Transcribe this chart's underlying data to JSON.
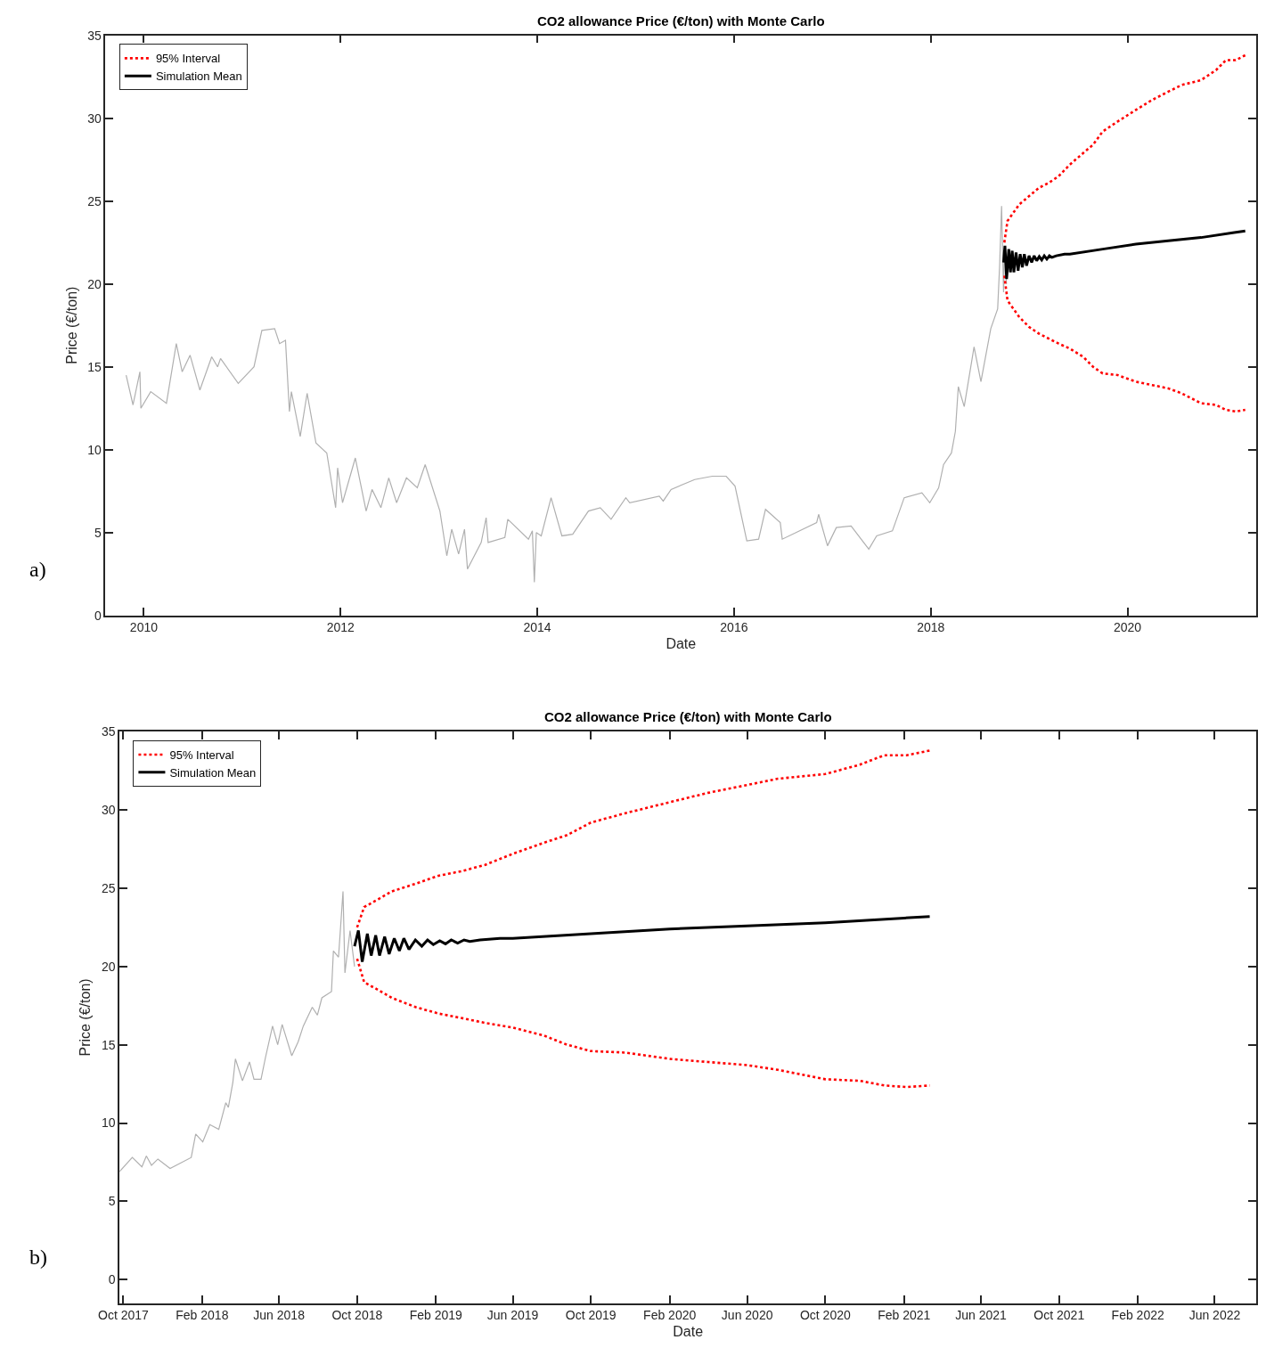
{
  "chart_data": [
    {
      "type": "line",
      "title": "CO2 allowance Price (€/ton) with Monte Carlo",
      "xlabel": "Date",
      "ylabel": "Price (€/ton)",
      "annotations": [
        "a)"
      ],
      "xlim": [
        2009.61,
        2021.31
      ],
      "xticks": [
        2010,
        2012,
        2014,
        2016,
        2018,
        2020
      ],
      "ylim": [
        0,
        35
      ],
      "yticks": [
        0,
        5,
        10,
        15,
        20,
        25,
        30,
        35
      ],
      "legend": "top left",
      "series": [
        {
          "color": "#b0b0b0",
          "line_style": "solid",
          "x": [
            2009.82,
            2009.89,
            2009.96,
            2009.97,
            2010.07,
            2010.23,
            2010.33,
            2010.39,
            2010.47,
            2010.57,
            2010.69,
            2010.75,
            2010.78,
            2010.96,
            2011.12,
            2011.2,
            2011.33,
            2011.38,
            2011.44,
            2011.48,
            2011.5,
            2011.59,
            2011.66,
            2011.75,
            2011.86,
            2011.95,
            2011.97,
            2012.02,
            2012.15,
            2012.26,
            2012.32,
            2012.41,
            2012.49,
            2012.57,
            2012.67,
            2012.78,
            2012.86,
            2013.01,
            2013.08,
            2013.13,
            2013.2,
            2013.26,
            2013.29,
            2013.43,
            2013.48,
            2013.5,
            2013.67,
            2013.7,
            2013.91,
            2013.95,
            2013.97,
            2013.99,
            2014.04,
            2014.14,
            2014.25,
            2014.36,
            2014.52,
            2014.64,
            2014.75,
            2014.9,
            2014.94,
            2015.24,
            2015.28,
            2015.36,
            2015.6,
            2015.78,
            2015.92,
            2016.01,
            2016.13,
            2016.25,
            2016.32,
            2016.47,
            2016.49,
            2016.84,
            2016.86,
            2016.95,
            2017.04,
            2017.19,
            2017.37,
            2017.45,
            2017.61,
            2017.73,
            2017.91,
            2017.99,
            2018.08,
            2018.13,
            2018.21,
            2018.25,
            2018.28,
            2018.34,
            2018.44,
            2018.51,
            2018.61,
            2018.68,
            2018.7,
            2018.72,
            2018.74,
            2018.75,
            2018.77
          ],
          "values": [
            14.5,
            12.7,
            14.7,
            12.5,
            13.5,
            12.8,
            16.4,
            14.7,
            15.7,
            13.6,
            15.6,
            15.0,
            15.5,
            14.0,
            15.0,
            17.2,
            17.3,
            16.4,
            16.6,
            12.3,
            13.5,
            10.8,
            13.4,
            10.4,
            9.8,
            6.5,
            8.9,
            6.8,
            9.5,
            6.3,
            7.6,
            6.5,
            8.3,
            6.8,
            8.3,
            7.7,
            9.1,
            6.3,
            3.6,
            5.2,
            3.7,
            5.2,
            2.8,
            4.4,
            5.9,
            4.4,
            4.7,
            5.8,
            4.6,
            5.1,
            2.0,
            5.0,
            4.8,
            7.1,
            4.8,
            4.9,
            6.3,
            6.5,
            5.8,
            7.1,
            6.8,
            7.2,
            6.9,
            7.6,
            8.2,
            8.4,
            8.4,
            7.8,
            4.5,
            4.6,
            6.4,
            5.6,
            4.6,
            5.6,
            6.1,
            4.2,
            5.3,
            5.4,
            4.0,
            4.8,
            5.1,
            7.1,
            7.4,
            6.8,
            7.7,
            9.1,
            9.8,
            11.1,
            13.8,
            12.6,
            16.2,
            14.1,
            17.3,
            18.5,
            21.1,
            24.7,
            19.5,
            22.1,
            20.0
          ]
        },
        {
          "name": "95% Interval",
          "color": "#ff0000",
          "line_style": "dotted",
          "x": [
            2018.748,
            2018.78,
            2018.84,
            2018.9,
            2019.0,
            2019.1,
            2019.2,
            2019.3,
            2019.414,
            2019.55,
            2019.65,
            2019.748,
            2019.9,
            2020.085,
            2020.25,
            2020.414,
            2020.55,
            2020.748,
            2020.9,
            2021.0,
            2021.1,
            2021.197
          ],
          "values": [
            22.5,
            23.8,
            24.3,
            24.8,
            25.3,
            25.8,
            26.1,
            26.5,
            27.2,
            27.9,
            28.4,
            29.2,
            29.8,
            30.5,
            31.1,
            31.6,
            32.0,
            32.3,
            32.9,
            33.5,
            33.5,
            33.8
          ]
        },
        {
          "color": "#ff0000",
          "line_style": "dotted",
          "x": [
            2018.748,
            2018.78,
            2018.84,
            2018.9,
            2019.0,
            2019.1,
            2019.2,
            2019.3,
            2019.414,
            2019.55,
            2019.65,
            2019.748,
            2019.9,
            2020.085,
            2020.25,
            2020.414,
            2020.55,
            2020.748,
            2020.9,
            2021.0,
            2021.1,
            2021.197
          ],
          "values": [
            20.5,
            19.0,
            18.5,
            18.0,
            17.4,
            17.0,
            16.7,
            16.4,
            16.1,
            15.6,
            15.0,
            14.6,
            14.5,
            14.1,
            13.9,
            13.7,
            13.4,
            12.8,
            12.7,
            12.4,
            12.3,
            12.4
          ]
        },
        {
          "name": "Simulation Mean",
          "color": "#000000",
          "line_style": "solid",
          "x": [
            2018.74,
            2018.754,
            2018.771,
            2018.793,
            2018.81,
            2018.828,
            2018.845,
            2018.867,
            2018.888,
            2018.909,
            2018.931,
            2018.951,
            2018.974,
            2018.999,
            2019.026,
            2019.051,
            2019.077,
            2019.103,
            2019.128,
            2019.154,
            2019.18,
            2019.206,
            2019.232,
            2019.275,
            2019.36,
            2019.414,
            2019.748,
            2020.085,
            2020.414,
            2020.748,
            2021.085,
            2021.197
          ],
          "values": [
            21.3,
            22.3,
            20.3,
            22.1,
            20.7,
            22.0,
            20.7,
            21.9,
            20.8,
            21.8,
            21.0,
            21.8,
            21.1,
            21.7,
            21.3,
            21.7,
            21.4,
            21.65,
            21.45,
            21.7,
            21.5,
            21.7,
            21.6,
            21.7,
            21.8,
            21.8,
            22.1,
            22.4,
            22.6,
            22.8,
            23.1,
            23.2
          ]
        }
      ]
    },
    {
      "type": "line",
      "title": "CO2 allowance Price (€/ton) with Monte Carlo",
      "xlabel": "Date",
      "ylabel": "Price (€/ton)",
      "annotations": [
        "b)"
      ],
      "xlim": [
        "2017-09-25",
        "2022-08-05"
      ],
      "xticks": [
        {
          "value": "2017-10-01",
          "label": "Oct 2017"
        },
        {
          "value": "2018-02-01",
          "label": "Feb 2018"
        },
        {
          "value": "2018-06-01",
          "label": "Jun 2018"
        },
        {
          "value": "2018-10-01",
          "label": "Oct 2018"
        },
        {
          "value": "2019-02-01",
          "label": "Feb 2019"
        },
        {
          "value": "2019-06-01",
          "label": "Jun 2019"
        },
        {
          "value": "2019-10-01",
          "label": "Oct 2019"
        },
        {
          "value": "2020-02-01",
          "label": "Feb 2020"
        },
        {
          "value": "2020-06-01",
          "label": "Jun 2020"
        },
        {
          "value": "2020-10-01",
          "label": "Oct 2020"
        },
        {
          "value": "2021-02-01",
          "label": "Feb 2021"
        },
        {
          "value": "2021-06-01",
          "label": "Jun 2021"
        },
        {
          "value": "2021-10-01",
          "label": "Oct 2021"
        },
        {
          "value": "2022-02-01",
          "label": "Feb 2022"
        },
        {
          "value": "2022-06-01",
          "label": "Jun 2022"
        }
      ],
      "ylim": [
        -1.5,
        35
      ],
      "yticks": [
        0,
        5,
        10,
        15,
        20,
        25,
        30,
        35
      ],
      "legend": "top left",
      "series": [
        {
          "color": "#b0b0b0",
          "line_style": "solid",
          "x": [
            "2017-09-25",
            "2017-10-15",
            "2017-10-30",
            "2017-11-06",
            "2017-11-14",
            "2017-11-24",
            "2017-12-13",
            "2018-01-15",
            "2018-01-22",
            "2018-02-02",
            "2018-02-13",
            "2018-02-27",
            "2018-03-10",
            "2018-03-14",
            "2018-03-21",
            "2018-03-25",
            "2018-04-05",
            "2018-04-16",
            "2018-04-23",
            "2018-05-04",
            "2018-05-11",
            "2018-05-22",
            "2018-05-30",
            "2018-06-06",
            "2018-06-21",
            "2018-07-01",
            "2018-07-09",
            "2018-07-23",
            "2018-07-31",
            "2018-08-07",
            "2018-08-22",
            "2018-08-25",
            "2018-09-02",
            "2018-09-09",
            "2018-09-12",
            "2018-09-20",
            "2018-09-27"
          ],
          "values": [
            6.9,
            7.8,
            7.2,
            7.9,
            7.3,
            7.7,
            7.1,
            7.8,
            9.3,
            8.8,
            9.9,
            9.6,
            11.3,
            11.0,
            12.6,
            14.1,
            12.7,
            13.9,
            12.8,
            12.8,
            14.2,
            16.2,
            15.0,
            16.3,
            14.3,
            15.2,
            16.2,
            17.4,
            16.9,
            18.0,
            18.4,
            21.0,
            20.6,
            24.8,
            19.6,
            22.3,
            20.0
          ]
        },
        {
          "name": "95% Interval",
          "color": "#ff0000",
          "line_style": "dotted",
          "x": [
            "2018-10-01",
            "2018-10-12",
            "2018-11-03",
            "2018-11-24",
            "2019-01-01",
            "2019-02-05",
            "2019-03-14",
            "2019-04-19",
            "2019-06-01",
            "2019-07-19",
            "2019-08-25",
            "2019-10-01",
            "2019-11-24",
            "2020-02-01",
            "2020-04-01",
            "2020-06-01",
            "2020-07-19",
            "2020-10-01",
            "2020-11-24",
            "2021-01-01",
            "2021-02-05",
            "2021-03-13"
          ],
          "values": [
            22.5,
            23.8,
            24.3,
            24.8,
            25.3,
            25.8,
            26.1,
            26.5,
            27.2,
            27.9,
            28.4,
            29.2,
            29.8,
            30.5,
            31.1,
            31.6,
            32.0,
            32.3,
            32.9,
            33.5,
            33.5,
            33.8
          ]
        },
        {
          "color": "#ff0000",
          "line_style": "dotted",
          "x": [
            "2018-10-01",
            "2018-10-12",
            "2018-11-03",
            "2018-11-24",
            "2019-01-01",
            "2019-02-05",
            "2019-03-14",
            "2019-04-19",
            "2019-06-01",
            "2019-07-19",
            "2019-08-25",
            "2019-10-01",
            "2019-11-24",
            "2020-02-01",
            "2020-04-01",
            "2020-06-01",
            "2020-07-19",
            "2020-10-01",
            "2020-11-24",
            "2021-01-01",
            "2021-02-05",
            "2021-03-13"
          ],
          "values": [
            20.5,
            19.0,
            18.5,
            18.0,
            17.4,
            17.0,
            16.7,
            16.4,
            16.1,
            15.6,
            15.0,
            14.6,
            14.5,
            14.1,
            13.9,
            13.7,
            13.4,
            12.8,
            12.7,
            12.4,
            12.3,
            12.4
          ]
        },
        {
          "name": "Simulation Mean",
          "color": "#000000",
          "line_style": "solid",
          "x": [
            "2018-09-27",
            "2018-10-03",
            "2018-10-09",
            "2018-10-17",
            "2018-10-23",
            "2018-10-30",
            "2018-11-05",
            "2018-11-13",
            "2018-11-20",
            "2018-11-28",
            "2018-12-06",
            "2018-12-13",
            "2018-12-21",
            "2018-12-31",
            "2019-01-10",
            "2019-01-19",
            "2019-01-28",
            "2019-02-07",
            "2019-02-16",
            "2019-02-25",
            "2019-03-07",
            "2019-03-17",
            "2019-03-26",
            "2019-04-11",
            "2019-05-12",
            "2019-06-01",
            "2019-10-01",
            "2020-02-01",
            "2020-06-01",
            "2020-10-01",
            "2021-02-01",
            "2021-03-13"
          ],
          "values": [
            21.3,
            22.3,
            20.3,
            22.1,
            20.7,
            22.0,
            20.7,
            21.9,
            20.8,
            21.8,
            21.0,
            21.8,
            21.1,
            21.7,
            21.3,
            21.7,
            21.4,
            21.65,
            21.45,
            21.7,
            21.5,
            21.7,
            21.6,
            21.7,
            21.8,
            21.8,
            22.1,
            22.4,
            22.6,
            22.8,
            23.1,
            23.2
          ]
        }
      ]
    }
  ]
}
